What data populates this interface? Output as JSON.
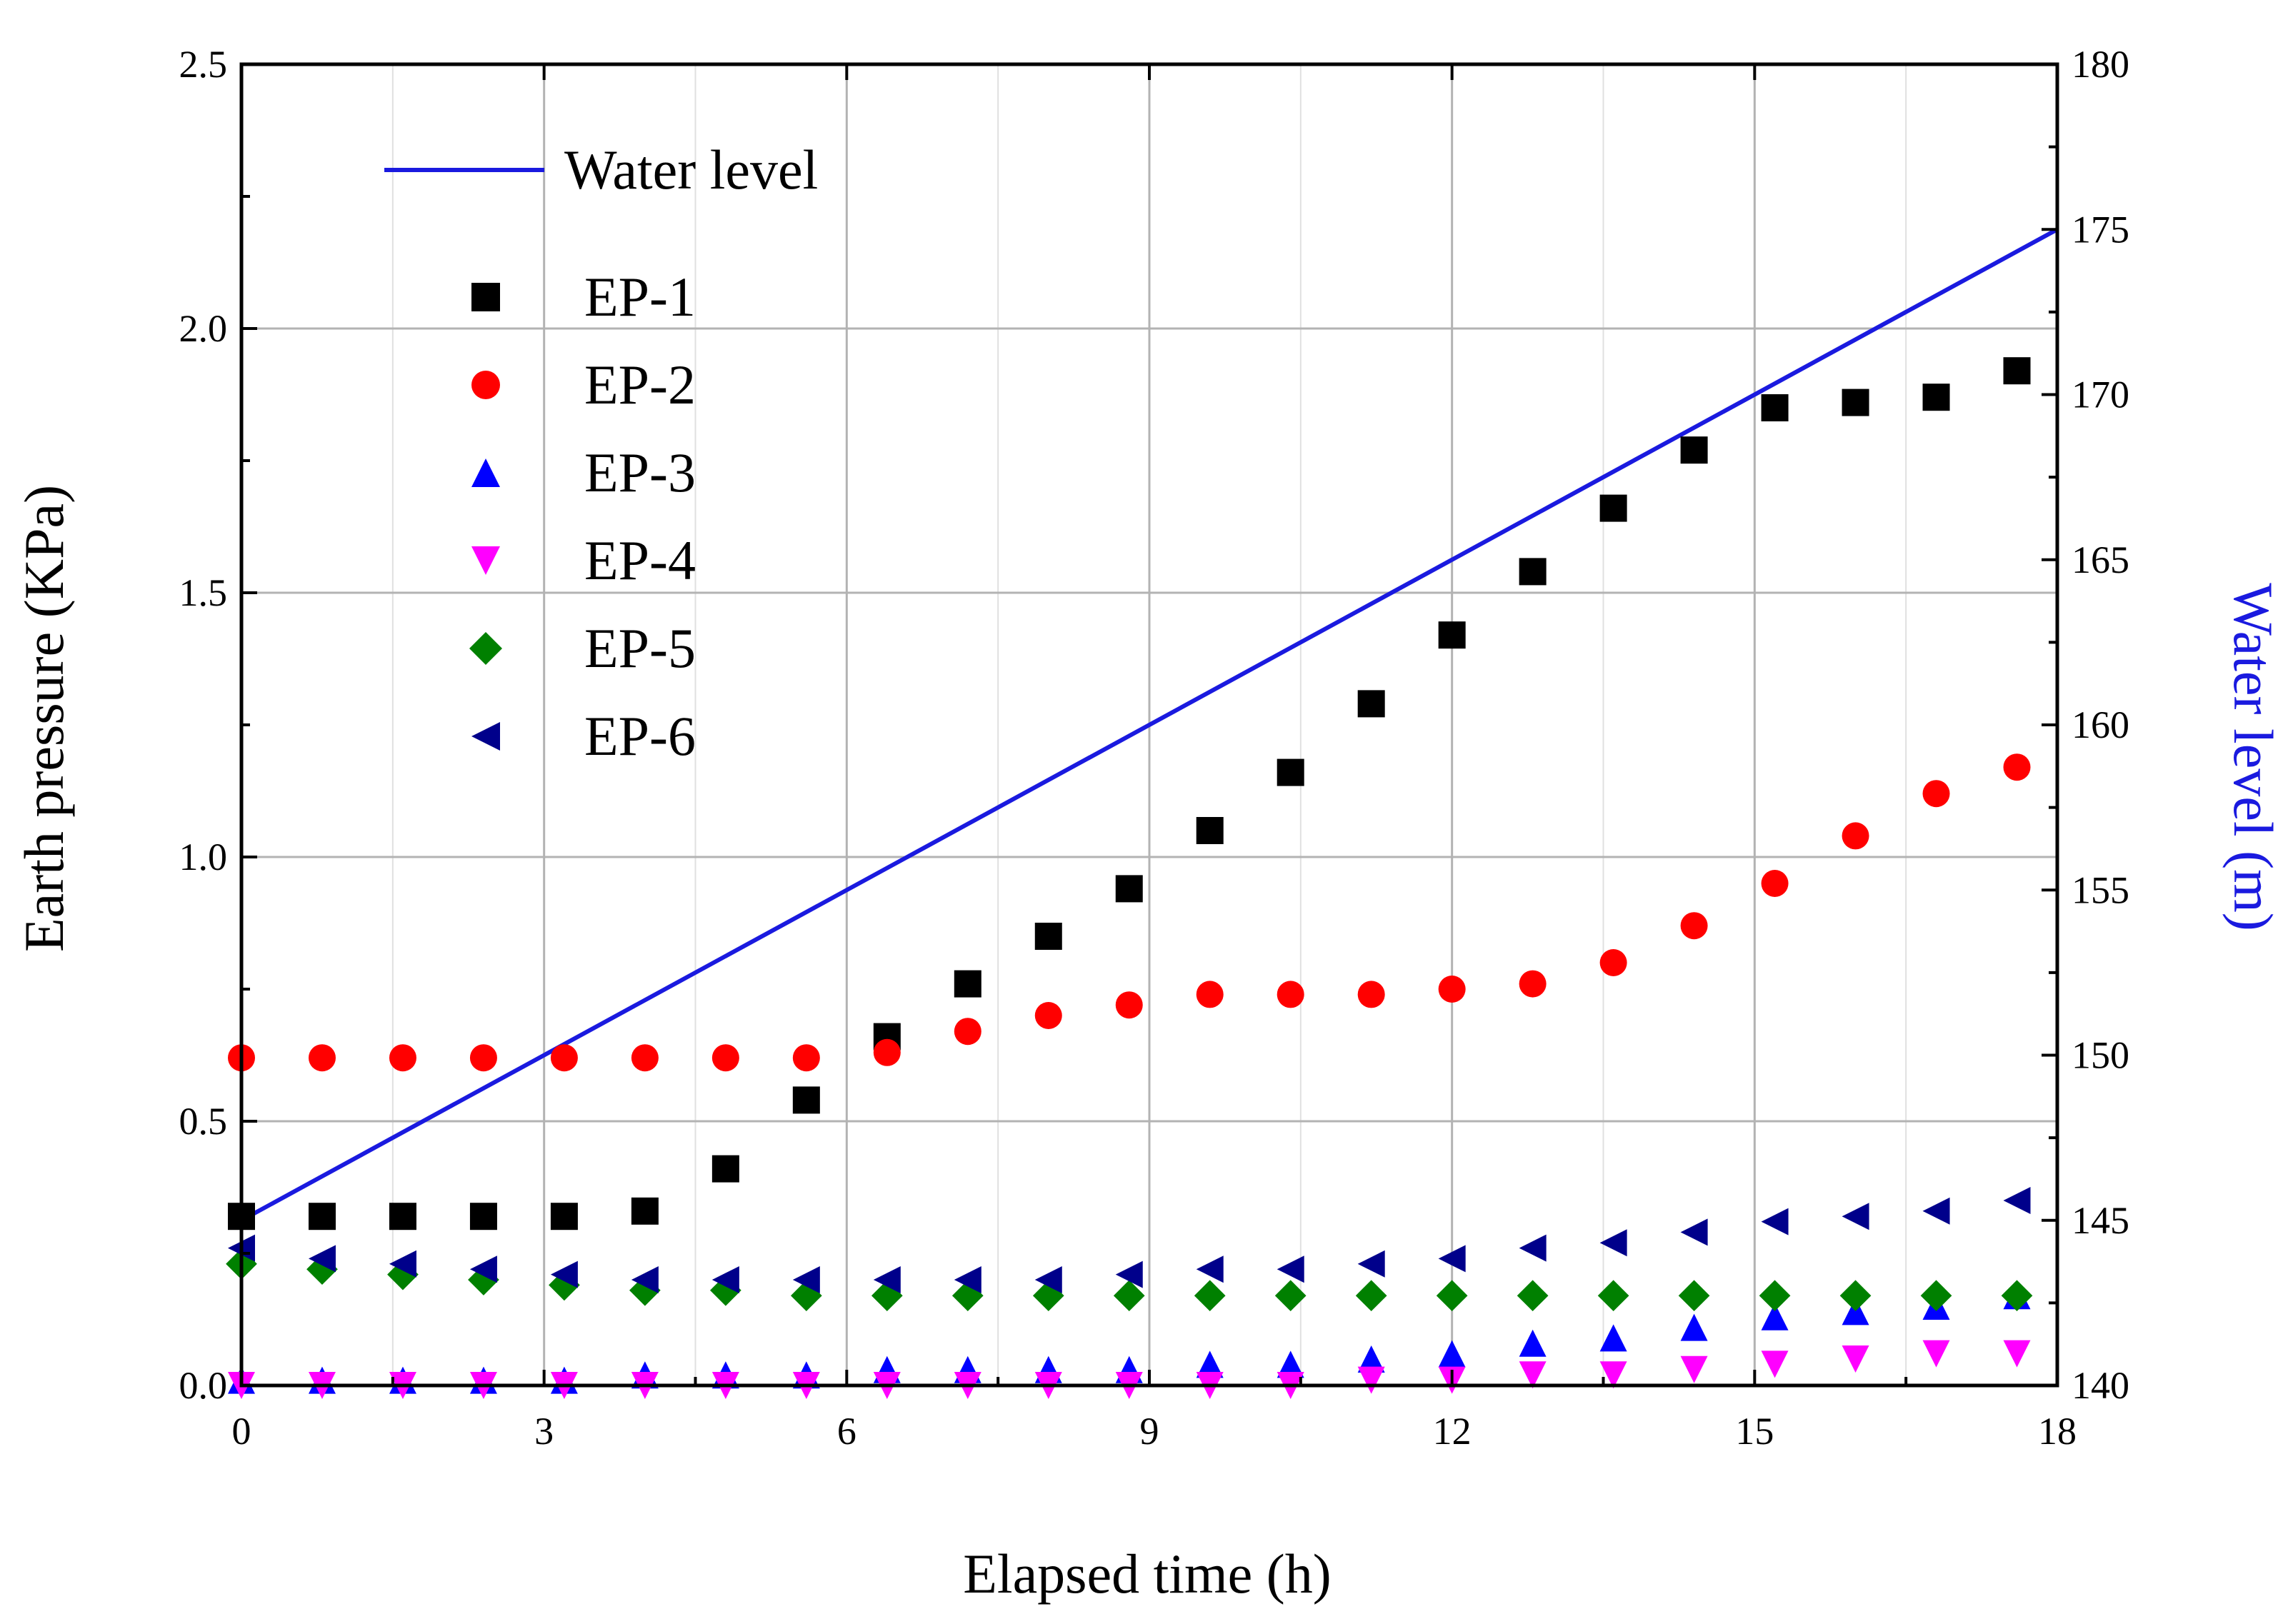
{
  "chart_data": {
    "type": "scatter",
    "xlabel": "Elapsed time (h)",
    "ylabel": "Earth pressure (KPa)",
    "y2label": "Water level (m)",
    "xlim": [
      0,
      18
    ],
    "ylim": [
      0,
      2.5
    ],
    "y2lim": [
      140,
      180
    ],
    "xticks": [
      0,
      3,
      6,
      9,
      12,
      15,
      18
    ],
    "yticks": [
      0.0,
      0.5,
      1.0,
      1.5,
      2.0,
      2.5
    ],
    "y2ticks": [
      140,
      145,
      150,
      155,
      160,
      165,
      170,
      175,
      180
    ],
    "grid": true,
    "legend_position": "top-left",
    "line_series": {
      "name": "Water level",
      "axis": "right",
      "color": "#1a1adf",
      "x": [
        0,
        18
      ],
      "y": [
        145,
        175
      ]
    },
    "x": [
      0,
      0.8,
      1.6,
      2.4,
      3.2,
      4.0,
      4.8,
      5.6,
      6.4,
      7.2,
      8.0,
      8.8,
      9.6,
      10.4,
      11.2,
      12.0,
      12.8,
      13.6,
      14.4,
      15.2,
      16.0,
      16.8,
      17.6
    ],
    "series": [
      {
        "name": "EP-1",
        "marker": "square",
        "color": "#000000",
        "values": [
          0.32,
          0.32,
          0.32,
          0.32,
          0.32,
          0.33,
          0.41,
          0.54,
          0.66,
          0.76,
          0.85,
          0.94,
          1.05,
          1.16,
          1.29,
          1.42,
          1.54,
          1.66,
          1.77,
          1.85,
          1.86,
          1.87,
          1.92
        ]
      },
      {
        "name": "EP-2",
        "marker": "circle",
        "color": "#ff0000",
        "values": [
          0.62,
          0.62,
          0.62,
          0.62,
          0.62,
          0.62,
          0.62,
          0.62,
          0.63,
          0.67,
          0.7,
          0.72,
          0.74,
          0.74,
          0.74,
          0.75,
          0.76,
          0.8,
          0.87,
          0.95,
          1.04,
          1.12,
          1.17
        ]
      },
      {
        "name": "EP-3",
        "marker": "triangle-up",
        "color": "#0000ff",
        "values": [
          0.01,
          0.01,
          0.01,
          0.01,
          0.01,
          0.02,
          0.02,
          0.02,
          0.03,
          0.03,
          0.03,
          0.03,
          0.04,
          0.04,
          0.05,
          0.06,
          0.08,
          0.09,
          0.11,
          0.13,
          0.14,
          0.15,
          0.17
        ]
      },
      {
        "name": "EP-4",
        "marker": "triangle-down",
        "color": "#ff00ff",
        "values": [
          0.0,
          0.0,
          0.0,
          0.0,
          0.0,
          0.0,
          0.0,
          0.0,
          0.0,
          0.0,
          0.0,
          0.0,
          0.0,
          0.0,
          0.01,
          0.01,
          0.02,
          0.02,
          0.03,
          0.04,
          0.05,
          0.06,
          0.06
        ]
      },
      {
        "name": "EP-5",
        "marker": "diamond",
        "color": "#008000",
        "values": [
          0.23,
          0.22,
          0.21,
          0.2,
          0.19,
          0.18,
          0.18,
          0.17,
          0.17,
          0.17,
          0.17,
          0.17,
          0.17,
          0.17,
          0.17,
          0.17,
          0.17,
          0.17,
          0.17,
          0.17,
          0.17,
          0.17,
          0.17
        ]
      },
      {
        "name": "EP-6",
        "marker": "triangle-left",
        "color": "#00008b",
        "values": [
          0.26,
          0.24,
          0.23,
          0.22,
          0.21,
          0.2,
          0.2,
          0.2,
          0.2,
          0.2,
          0.2,
          0.21,
          0.22,
          0.22,
          0.23,
          0.24,
          0.26,
          0.27,
          0.29,
          0.31,
          0.32,
          0.33,
          0.35
        ]
      }
    ]
  }
}
